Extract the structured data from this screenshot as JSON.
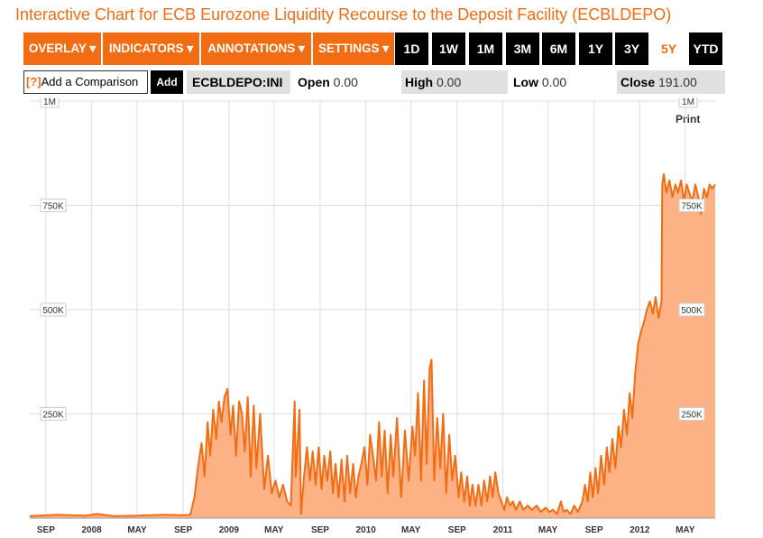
{
  "page": {
    "title": "Interactive Chart for ECB Eurozone Liquidity Recourse to the Deposit Facility (ECBLDEPO)",
    "accent_color": "#f26c13"
  },
  "toolbar": {
    "menus": [
      "OVERLAY ▾",
      "INDICATORS ▾",
      "ANNOTATIONS ▾",
      "SETTINGS ▾"
    ],
    "ranges": [
      "1D",
      "1W",
      "1M",
      "3M",
      "6M",
      "1Y",
      "3Y",
      "5Y",
      "YTD"
    ],
    "active_range": "5Y"
  },
  "comparison": {
    "help_icon": "[?]",
    "placeholder": "Add a Comparison",
    "add_label": "Add"
  },
  "quote": {
    "ticker": "ECBLDEPO:INI",
    "open_label": "Open",
    "open_value": "0.00",
    "high_label": "High",
    "high_value": "0.00",
    "low_label": "Low",
    "low_value": "0.00",
    "close_label": "Close",
    "close_value": "191.00"
  },
  "print_label": "Print",
  "chart_data": {
    "type": "area",
    "series_color": "#f26c13",
    "fill_color": "#fdb286",
    "grid": true,
    "y_range": [
      0,
      1000000
    ],
    "y_ticks": [
      {
        "value": 250000,
        "label": "250K"
      },
      {
        "value": 500000,
        "label": "500K"
      },
      {
        "value": 750000,
        "label": "750K"
      },
      {
        "value": 1000000,
        "label": "1M"
      }
    ],
    "x_range": [
      "2007-07-20",
      "2012-07-20"
    ],
    "x_ticks": [
      {
        "date": "2007-09-01",
        "label": "SEP"
      },
      {
        "date": "2008-01-01",
        "label": "2008"
      },
      {
        "date": "2008-05-01",
        "label": "MAY"
      },
      {
        "date": "2008-09-01",
        "label": "SEP"
      },
      {
        "date": "2009-01-01",
        "label": "2009"
      },
      {
        "date": "2009-05-01",
        "label": "MAY"
      },
      {
        "date": "2009-09-01",
        "label": "SEP"
      },
      {
        "date": "2010-01-01",
        "label": "2010"
      },
      {
        "date": "2010-05-01",
        "label": "MAY"
      },
      {
        "date": "2010-09-01",
        "label": "SEP"
      },
      {
        "date": "2011-01-01",
        "label": "2011"
      },
      {
        "date": "2011-05-01",
        "label": "MAY"
      },
      {
        "date": "2011-09-01",
        "label": "SEP"
      },
      {
        "date": "2012-01-01",
        "label": "2012"
      },
      {
        "date": "2012-05-01",
        "label": "MAY"
      }
    ],
    "points": [
      [
        "2007-07-20",
        5000
      ],
      [
        "2007-10-01",
        8000
      ],
      [
        "2007-12-15",
        6000
      ],
      [
        "2008-01-15",
        10000
      ],
      [
        "2008-03-01",
        5000
      ],
      [
        "2008-05-01",
        6000
      ],
      [
        "2008-07-15",
        8000
      ],
      [
        "2008-09-01",
        7000
      ],
      [
        "2008-09-20",
        8000
      ],
      [
        "2008-10-01",
        50000
      ],
      [
        "2008-10-10",
        120000
      ],
      [
        "2008-10-20",
        180000
      ],
      [
        "2008-10-28",
        100000
      ],
      [
        "2008-11-05",
        230000
      ],
      [
        "2008-11-12",
        150000
      ],
      [
        "2008-11-20",
        260000
      ],
      [
        "2008-11-28",
        190000
      ],
      [
        "2008-12-05",
        280000
      ],
      [
        "2008-12-12",
        230000
      ],
      [
        "2008-12-20",
        290000
      ],
      [
        "2008-12-28",
        310000
      ],
      [
        "2009-01-05",
        200000
      ],
      [
        "2009-01-12",
        270000
      ],
      [
        "2009-01-20",
        150000
      ],
      [
        "2009-01-28",
        280000
      ],
      [
        "2009-02-05",
        250000
      ],
      [
        "2009-02-12",
        160000
      ],
      [
        "2009-02-20",
        290000
      ],
      [
        "2009-02-28",
        100000
      ],
      [
        "2009-03-08",
        270000
      ],
      [
        "2009-03-15",
        120000
      ],
      [
        "2009-03-25",
        250000
      ],
      [
        "2009-04-05",
        70000
      ],
      [
        "2009-04-15",
        150000
      ],
      [
        "2009-04-25",
        60000
      ],
      [
        "2009-05-05",
        90000
      ],
      [
        "2009-05-15",
        50000
      ],
      [
        "2009-05-25",
        80000
      ],
      [
        "2009-06-05",
        40000
      ],
      [
        "2009-06-15",
        30000
      ],
      [
        "2009-06-25",
        280000
      ],
      [
        "2009-06-28",
        100000
      ],
      [
        "2009-07-08",
        260000
      ],
      [
        "2009-07-12",
        10000
      ],
      [
        "2009-07-20",
        100000
      ],
      [
        "2009-07-28",
        170000
      ],
      [
        "2009-08-05",
        90000
      ],
      [
        "2009-08-12",
        160000
      ],
      [
        "2009-08-20",
        80000
      ],
      [
        "2009-08-28",
        170000
      ],
      [
        "2009-09-05",
        70000
      ],
      [
        "2009-09-12",
        150000
      ],
      [
        "2009-09-20",
        90000
      ],
      [
        "2009-09-28",
        160000
      ],
      [
        "2009-10-05",
        60000
      ],
      [
        "2009-10-12",
        130000
      ],
      [
        "2009-10-20",
        50000
      ],
      [
        "2009-10-28",
        140000
      ],
      [
        "2009-11-05",
        40000
      ],
      [
        "2009-11-12",
        150000
      ],
      [
        "2009-11-20",
        60000
      ],
      [
        "2009-11-28",
        130000
      ],
      [
        "2009-12-05",
        50000
      ],
      [
        "2009-12-12",
        100000
      ],
      [
        "2009-12-20",
        130000
      ],
      [
        "2009-12-28",
        170000
      ],
      [
        "2010-01-05",
        80000
      ],
      [
        "2010-01-12",
        200000
      ],
      [
        "2010-01-20",
        150000
      ],
      [
        "2010-01-28",
        90000
      ],
      [
        "2010-02-05",
        230000
      ],
      [
        "2010-02-12",
        100000
      ],
      [
        "2010-02-20",
        210000
      ],
      [
        "2010-02-28",
        60000
      ],
      [
        "2010-03-08",
        200000
      ],
      [
        "2010-03-15",
        100000
      ],
      [
        "2010-03-25",
        240000
      ],
      [
        "2010-04-05",
        50000
      ],
      [
        "2010-04-15",
        210000
      ],
      [
        "2010-04-25",
        90000
      ],
      [
        "2010-05-05",
        220000
      ],
      [
        "2010-05-12",
        150000
      ],
      [
        "2010-05-20",
        300000
      ],
      [
        "2010-05-28",
        90000
      ],
      [
        "2010-06-05",
        330000
      ],
      [
        "2010-06-12",
        130000
      ],
      [
        "2010-06-20",
        360000
      ],
      [
        "2010-06-25",
        380000
      ],
      [
        "2010-07-02",
        90000
      ],
      [
        "2010-07-10",
        240000
      ],
      [
        "2010-07-18",
        120000
      ],
      [
        "2010-07-26",
        250000
      ],
      [
        "2010-08-03",
        60000
      ],
      [
        "2010-08-11",
        200000
      ],
      [
        "2010-08-19",
        90000
      ],
      [
        "2010-08-27",
        150000
      ],
      [
        "2010-09-05",
        50000
      ],
      [
        "2010-09-12",
        110000
      ],
      [
        "2010-09-20",
        40000
      ],
      [
        "2010-09-28",
        100000
      ],
      [
        "2010-10-05",
        30000
      ],
      [
        "2010-10-12",
        80000
      ],
      [
        "2010-10-20",
        30000
      ],
      [
        "2010-10-28",
        80000
      ],
      [
        "2010-11-05",
        30000
      ],
      [
        "2010-11-12",
        90000
      ],
      [
        "2010-11-20",
        40000
      ],
      [
        "2010-11-28",
        100000
      ],
      [
        "2010-12-05",
        50000
      ],
      [
        "2010-12-12",
        110000
      ],
      [
        "2010-12-20",
        60000
      ],
      [
        "2010-12-28",
        40000
      ],
      [
        "2011-01-05",
        20000
      ],
      [
        "2011-01-12",
        50000
      ],
      [
        "2011-01-20",
        30000
      ],
      [
        "2011-01-28",
        40000
      ],
      [
        "2011-02-05",
        20000
      ],
      [
        "2011-02-15",
        40000
      ],
      [
        "2011-02-25",
        20000
      ],
      [
        "2011-03-08",
        30000
      ],
      [
        "2011-03-20",
        20000
      ],
      [
        "2011-04-01",
        30000
      ],
      [
        "2011-04-12",
        15000
      ],
      [
        "2011-04-25",
        25000
      ],
      [
        "2011-05-05",
        15000
      ],
      [
        "2011-05-15",
        20000
      ],
      [
        "2011-05-25",
        10000
      ],
      [
        "2011-06-05",
        40000
      ],
      [
        "2011-06-12",
        15000
      ],
      [
        "2011-06-20",
        20000
      ],
      [
        "2011-07-01",
        10000
      ],
      [
        "2011-07-10",
        30000
      ],
      [
        "2011-07-20",
        15000
      ],
      [
        "2011-08-01",
        40000
      ],
      [
        "2011-08-08",
        80000
      ],
      [
        "2011-08-15",
        40000
      ],
      [
        "2011-08-22",
        110000
      ],
      [
        "2011-08-29",
        50000
      ],
      [
        "2011-09-05",
        120000
      ],
      [
        "2011-09-12",
        60000
      ],
      [
        "2011-09-20",
        150000
      ],
      [
        "2011-09-28",
        80000
      ],
      [
        "2011-10-05",
        170000
      ],
      [
        "2011-10-12",
        110000
      ],
      [
        "2011-10-20",
        190000
      ],
      [
        "2011-10-28",
        120000
      ],
      [
        "2011-11-05",
        220000
      ],
      [
        "2011-11-12",
        170000
      ],
      [
        "2011-11-20",
        260000
      ],
      [
        "2011-11-28",
        200000
      ],
      [
        "2011-12-05",
        300000
      ],
      [
        "2011-12-12",
        240000
      ],
      [
        "2011-12-20",
        350000
      ],
      [
        "2011-12-28",
        420000
      ],
      [
        "2012-01-05",
        450000
      ],
      [
        "2012-01-12",
        470000
      ],
      [
        "2012-01-20",
        500000
      ],
      [
        "2012-01-28",
        520000
      ],
      [
        "2012-02-05",
        490000
      ],
      [
        "2012-02-12",
        530000
      ],
      [
        "2012-02-20",
        480000
      ],
      [
        "2012-02-28",
        520000
      ],
      [
        "2012-03-01",
        800000
      ],
      [
        "2012-03-05",
        825000
      ],
      [
        "2012-03-12",
        780000
      ],
      [
        "2012-03-20",
        810000
      ],
      [
        "2012-03-28",
        770000
      ],
      [
        "2012-04-05",
        800000
      ],
      [
        "2012-04-12",
        780000
      ],
      [
        "2012-04-20",
        810000
      ],
      [
        "2012-04-28",
        760000
      ],
      [
        "2012-05-05",
        800000
      ],
      [
        "2012-05-12",
        780000
      ],
      [
        "2012-05-20",
        760000
      ],
      [
        "2012-05-28",
        800000
      ],
      [
        "2012-06-05",
        770000
      ],
      [
        "2012-06-12",
        730000
      ],
      [
        "2012-06-20",
        790000
      ],
      [
        "2012-06-28",
        770000
      ],
      [
        "2012-07-05",
        800000
      ],
      [
        "2012-07-12",
        790000
      ],
      [
        "2012-07-20",
        800000
      ]
    ]
  }
}
